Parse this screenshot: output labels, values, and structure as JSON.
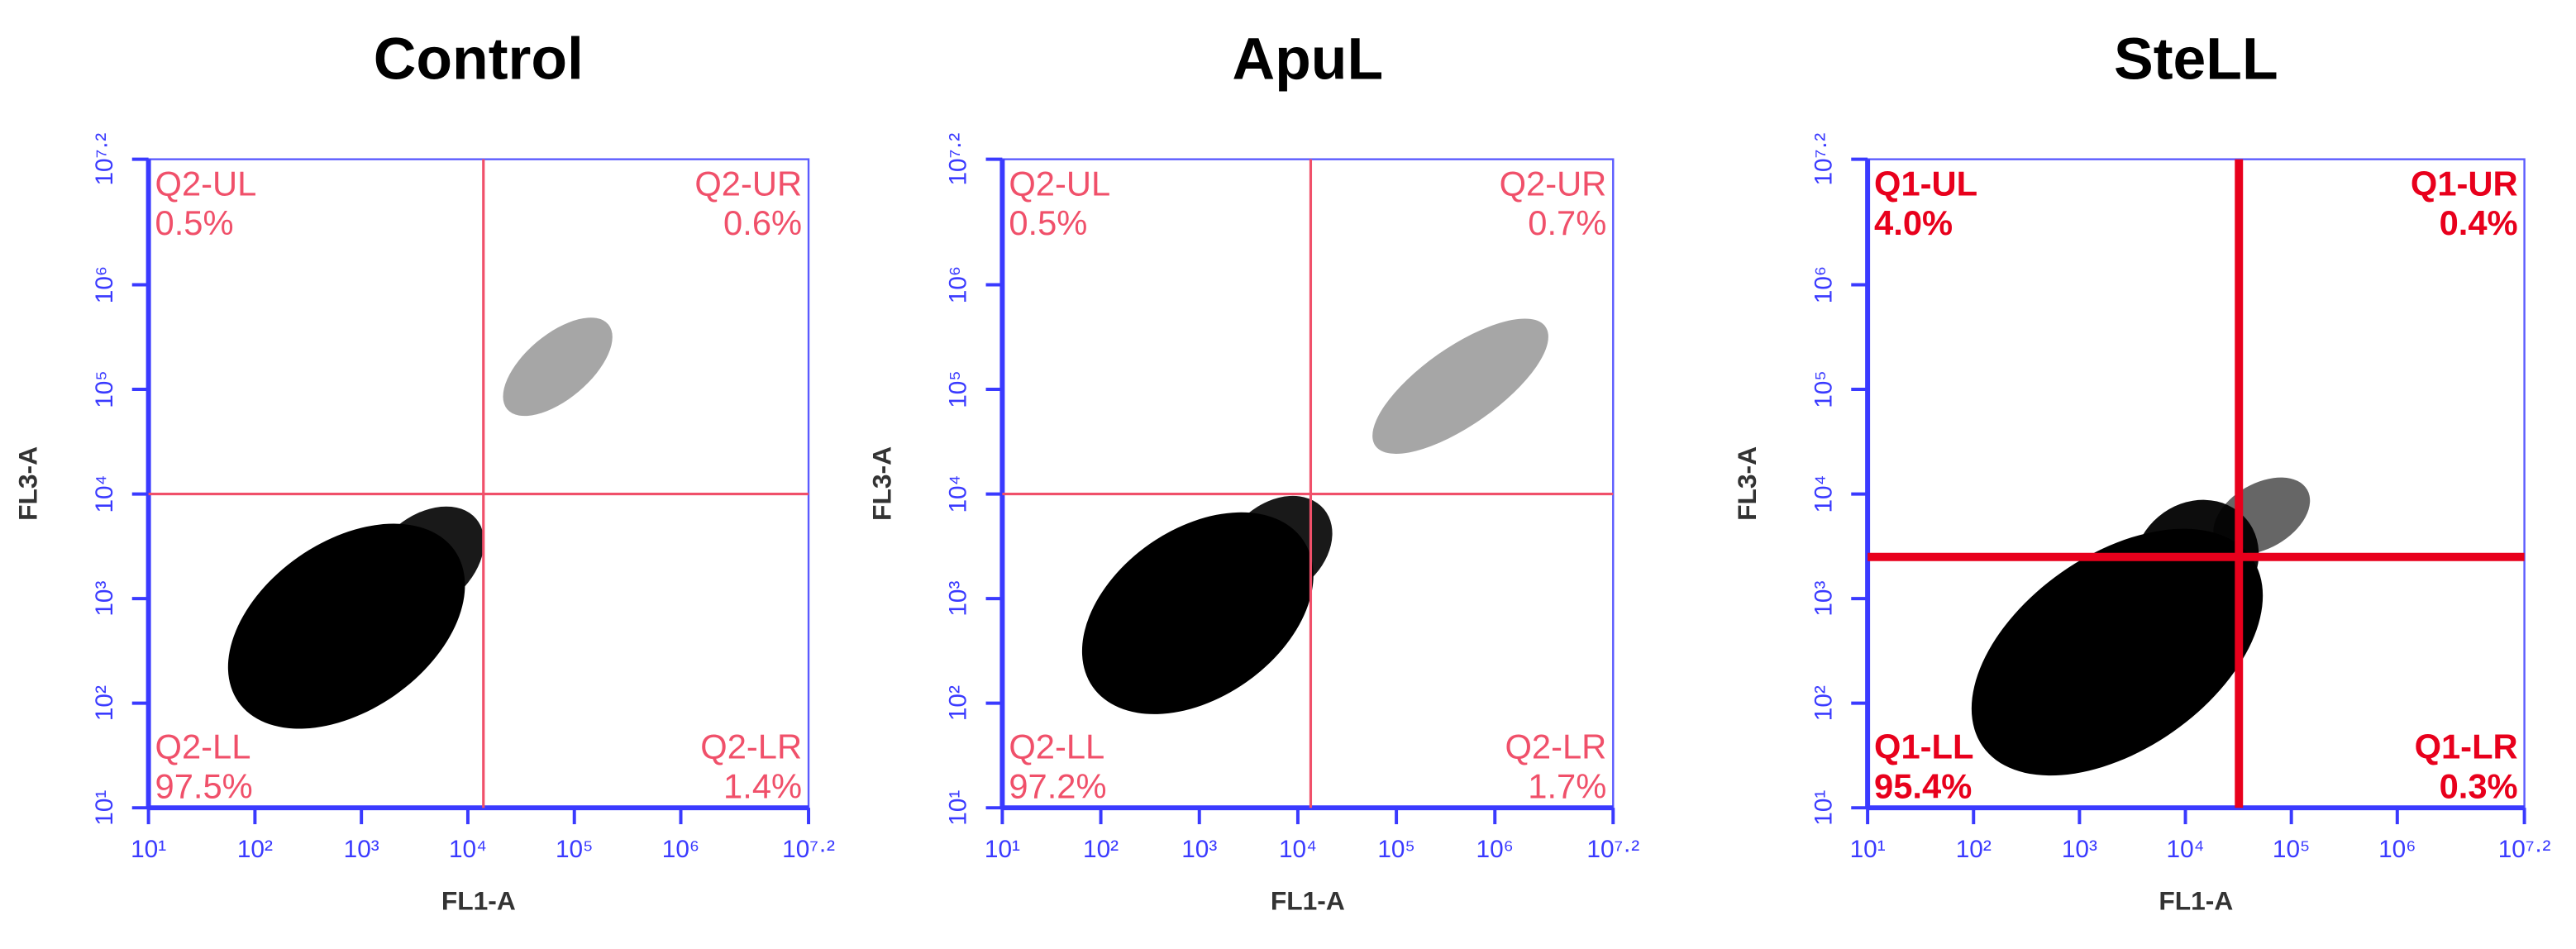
{
  "chart_data": [
    {
      "type": "quadrant-scatter",
      "title": "Control",
      "xlabel": "FL1-A",
      "ylabel": "FL3-A",
      "log_scale": true,
      "xlim": [
        10,
        15848932
      ],
      "ylim": [
        10,
        15848932
      ],
      "xticks": [
        {
          "value": 10,
          "label": "10¹"
        },
        {
          "value": 100,
          "label": "10²"
        },
        {
          "value": 1000,
          "label": "10³"
        },
        {
          "value": 10000,
          "label": "10⁴"
        },
        {
          "value": 100000,
          "label": "10⁵"
        },
        {
          "value": 1000000,
          "label": "10⁶"
        },
        {
          "value": 15848932,
          "label": "10⁷·²"
        }
      ],
      "yticks": [
        {
          "value": 10,
          "label": "10¹"
        },
        {
          "value": 100,
          "label": "10²"
        },
        {
          "value": 1000,
          "label": "10³"
        },
        {
          "value": 10000,
          "label": "10⁴"
        },
        {
          "value": 100000,
          "label": "10⁵"
        },
        {
          "value": 1000000,
          "label": "10⁶"
        },
        {
          "value": 15848932,
          "label": "10⁷·²"
        }
      ],
      "gate_x": 14000,
      "gate_y": 10000,
      "gate_color": "#f0506a",
      "label_color": "#f0506a",
      "bold": false,
      "quadrant_names": [
        "Q2-UL",
        "Q2-UR",
        "Q2-LL",
        "Q2-LR"
      ],
      "values": [
        0.5,
        0.6,
        97.5,
        1.4
      ],
      "value_labels": [
        "0.5%",
        "0.6%",
        "97.5%",
        "1.4%"
      ]
    },
    {
      "type": "quadrant-scatter",
      "title": "ApuL",
      "xlabel": "FL1-A",
      "ylabel": "FL3-A",
      "log_scale": true,
      "xlim": [
        10,
        15848932
      ],
      "ylim": [
        10,
        15848932
      ],
      "xticks": [
        {
          "value": 10,
          "label": "10¹"
        },
        {
          "value": 100,
          "label": "10²"
        },
        {
          "value": 1000,
          "label": "10³"
        },
        {
          "value": 10000,
          "label": "10⁴"
        },
        {
          "value": 100000,
          "label": "10⁵"
        },
        {
          "value": 1000000,
          "label": "10⁶"
        },
        {
          "value": 15848932,
          "label": "10⁷·²"
        }
      ],
      "yticks": [
        {
          "value": 10,
          "label": "10¹"
        },
        {
          "value": 100,
          "label": "10²"
        },
        {
          "value": 1000,
          "label": "10³"
        },
        {
          "value": 10000,
          "label": "10⁴"
        },
        {
          "value": 100000,
          "label": "10⁵"
        },
        {
          "value": 1000000,
          "label": "10⁶"
        },
        {
          "value": 15848932,
          "label": "10⁷·²"
        }
      ],
      "gate_x": 13500,
      "gate_y": 10000,
      "gate_color": "#f0506a",
      "label_color": "#f0506a",
      "bold": false,
      "quadrant_names": [
        "Q2-UL",
        "Q2-UR",
        "Q2-LL",
        "Q2-LR"
      ],
      "values": [
        0.5,
        0.7,
        97.2,
        1.7
      ],
      "value_labels": [
        "0.5%",
        "0.7%",
        "97.2%",
        "1.7%"
      ]
    },
    {
      "type": "quadrant-scatter",
      "title": "SteLL",
      "xlabel": "FL1-A",
      "ylabel": "FL3-A",
      "log_scale": true,
      "xlim": [
        10,
        15848932
      ],
      "ylim": [
        10,
        15848932
      ],
      "xticks": [
        {
          "value": 10,
          "label": "10¹"
        },
        {
          "value": 100,
          "label": "10²"
        },
        {
          "value": 1000,
          "label": "10³"
        },
        {
          "value": 10000,
          "label": "10⁴"
        },
        {
          "value": 100000,
          "label": "10⁵"
        },
        {
          "value": 1000000,
          "label": "10⁶"
        },
        {
          "value": 15848932,
          "label": "10⁷·²"
        }
      ],
      "yticks": [
        {
          "value": 10,
          "label": "10¹"
        },
        {
          "value": 100,
          "label": "10²"
        },
        {
          "value": 1000,
          "label": "10³"
        },
        {
          "value": 10000,
          "label": "10⁴"
        },
        {
          "value": 100000,
          "label": "10⁵"
        },
        {
          "value": 1000000,
          "label": "10⁶"
        },
        {
          "value": 15848932,
          "label": "10⁷·²"
        }
      ],
      "gate_x": 32000,
      "gate_y": 2500,
      "gate_color": "#e8001c",
      "label_color": "#e8001c",
      "bold": true,
      "quadrant_names": [
        "Q1-UL",
        "Q1-UR",
        "Q1-LL",
        "Q1-LR"
      ],
      "values": [
        4.0,
        0.4,
        95.4,
        0.3
      ],
      "value_labels": [
        "4.0%",
        "0.4%",
        "95.4%",
        "0.3%"
      ]
    }
  ]
}
